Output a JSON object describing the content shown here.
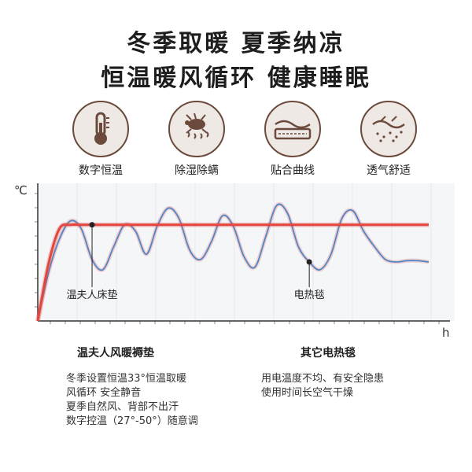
{
  "header": {
    "line1": "冬季取暖  夏季纳凉",
    "line2": "恒温暖风循环 健康睡眠"
  },
  "features": [
    {
      "icon": "thermometer-icon",
      "label": "数字恒温"
    },
    {
      "icon": "dust-mite-icon",
      "label": "除湿除螨"
    },
    {
      "icon": "mattress-curve-icon",
      "label": "贴合曲线"
    },
    {
      "icon": "airflow-icon",
      "label": "透气舒适"
    }
  ],
  "colors": {
    "brand": "#6b4a3c",
    "product_line": "#e2473f",
    "other_line": "#4f86c6",
    "axis": "#333333"
  },
  "chart_data": {
    "type": "line",
    "xlabel": "h",
    "ylabel": "℃",
    "series": [
      {
        "name": "温夫人床垫",
        "values": [
          0,
          45,
          72,
          75,
          75,
          75,
          75,
          75,
          75,
          75,
          75,
          75,
          75,
          75,
          75,
          75,
          75,
          75,
          75,
          75,
          75,
          75,
          75,
          75,
          75,
          75,
          75,
          75,
          75,
          75,
          75,
          75,
          75,
          75,
          75,
          75,
          75
        ]
      },
      {
        "name": "电热毯",
        "values": [
          0,
          38,
          64,
          78,
          72,
          48,
          40,
          58,
          75,
          70,
          52,
          74,
          88,
          80,
          55,
          48,
          62,
          82,
          74,
          50,
          42,
          66,
          90,
          84,
          58,
          46,
          40,
          52,
          80,
          86,
          70,
          58,
          48,
          46,
          47,
          47,
          46
        ]
      }
    ],
    "annotations": [
      {
        "text": "温夫人床垫",
        "series": "温夫人床垫",
        "x_index": 5
      },
      {
        "text": "电热毯",
        "series": "电热毯",
        "x_index": 25
      }
    ]
  },
  "comparison": {
    "left": {
      "title": "温夫人风暖褥垫",
      "lines": [
        "冬季设置恒温33°恒温取暖",
        "风循环 安全静音",
        "夏季自然风、背部不出汗",
        "数字控温（27°-50°）随意调"
      ]
    },
    "right": {
      "title": "其它电热毯",
      "lines": [
        "用电温度不均、有安全隐患",
        "使用时间长空气干燥"
      ]
    }
  }
}
